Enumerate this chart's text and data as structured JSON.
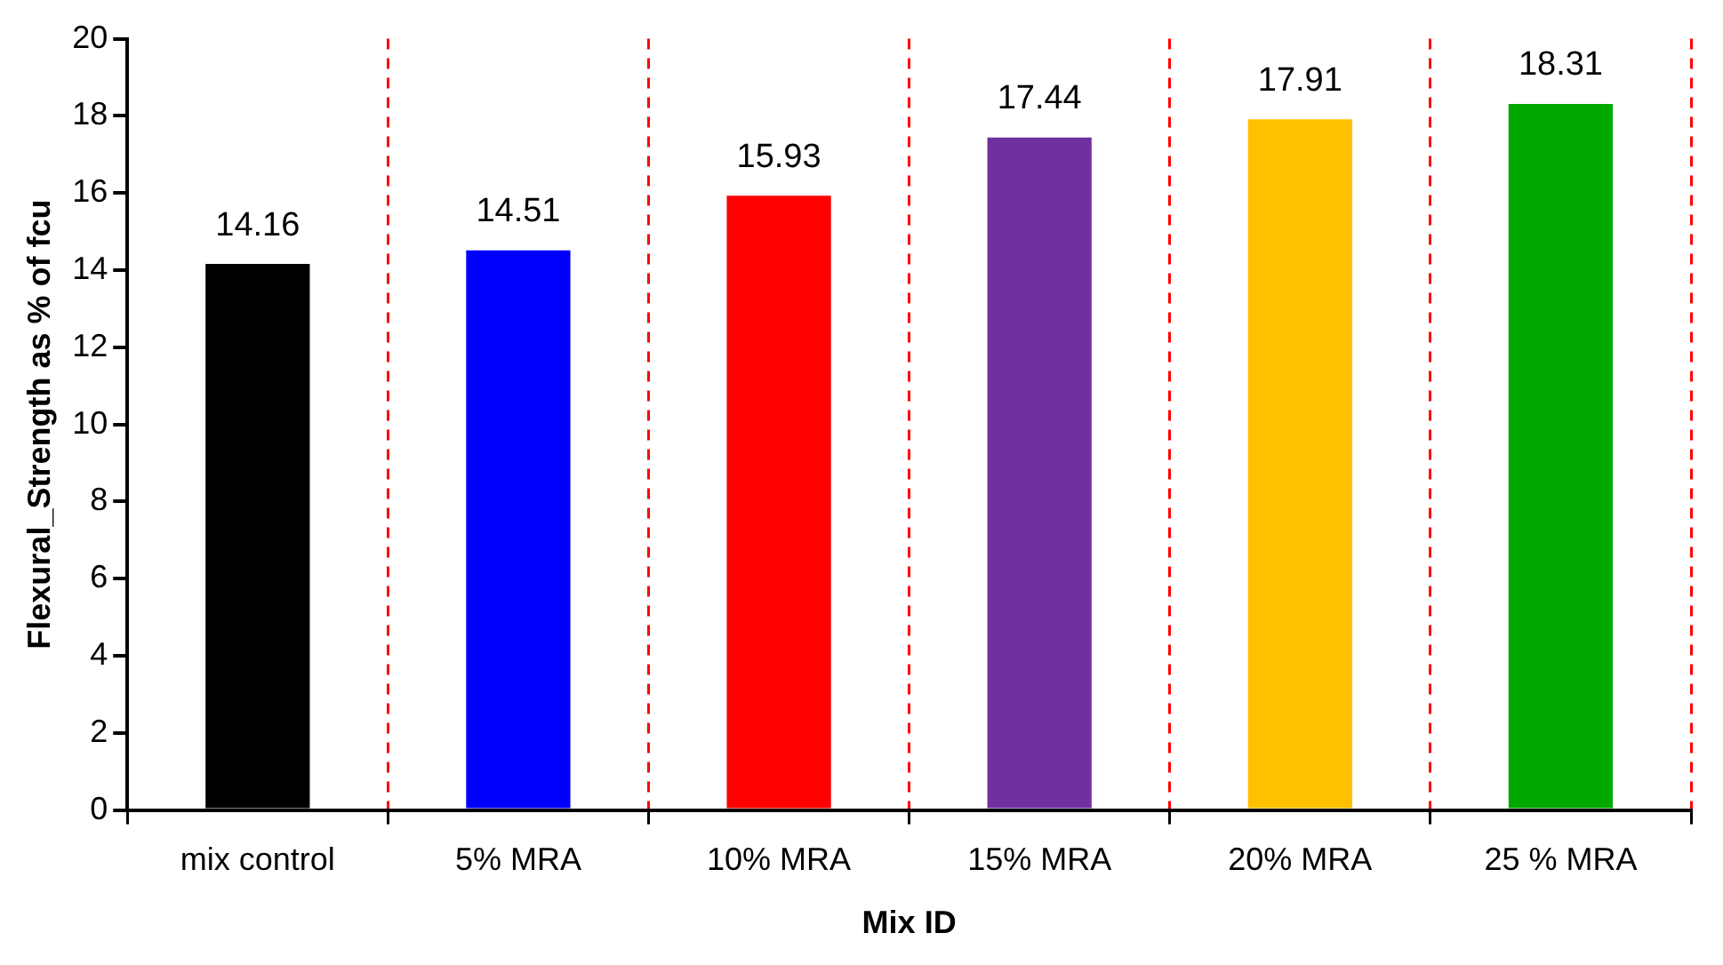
{
  "chart_data": {
    "type": "bar",
    "xlabel": "Mix ID",
    "ylabel": "Flexural_Strength as % of fcu",
    "categories": [
      "mix control",
      "5% MRA",
      "10% MRA",
      "15% MRA",
      "20% MRA",
      "25 % MRA"
    ],
    "values": [
      14.16,
      14.51,
      15.93,
      17.44,
      17.91,
      18.31
    ],
    "colors": [
      "#000000",
      "#0000ff",
      "#ff0000",
      "#7030a0",
      "#ffc000",
      "#00a800"
    ],
    "ylim": [
      0,
      20
    ],
    "yticks": [
      0,
      2,
      4,
      6,
      8,
      10,
      12,
      14,
      16,
      18,
      20
    ],
    "grid": "x",
    "data_labels": true,
    "legend": false
  }
}
